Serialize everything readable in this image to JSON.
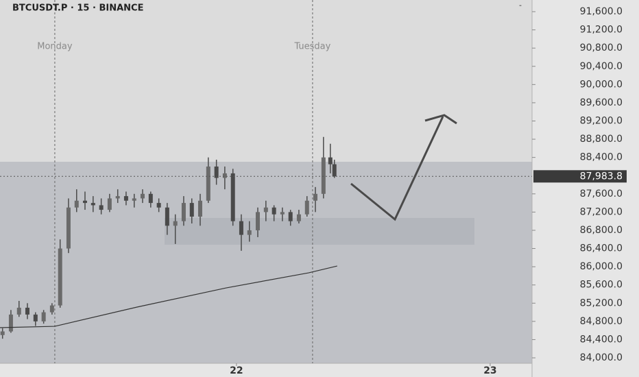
{
  "chart_data": {
    "type": "candlestick",
    "title": "BTCUSDT.P · 15 · BINANCE",
    "color": "#4a4a4a",
    "x": [
      21.078,
      21.111,
      21.143,
      21.176,
      21.208,
      21.24,
      21.273,
      21.305,
      21.338,
      21.37,
      21.403,
      21.435,
      21.467,
      21.5,
      21.532,
      21.565,
      21.597,
      21.63,
      21.662,
      21.694,
      21.727,
      21.759,
      21.792,
      21.824,
      21.857,
      21.889,
      21.921,
      21.954,
      21.986,
      22.019,
      22.051,
      22.084,
      22.116,
      22.148,
      22.181,
      22.213,
      22.246,
      22.278,
      22.311,
      22.343,
      22.37,
      22.386
    ],
    "open": [
      84500,
      84580,
      84950,
      85100,
      84950,
      84800,
      85000,
      85150,
      86400,
      87300,
      87450,
      87400,
      87350,
      87250,
      87500,
      87550,
      87450,
      87500,
      87600,
      87400,
      87300,
      86900,
      87000,
      87400,
      87100,
      87450,
      88200,
      87950,
      88050,
      87000,
      86700,
      86800,
      87200,
      87300,
      87150,
      87200,
      87000,
      87150,
      87450,
      87600,
      88400,
      88250
    ],
    "high": [
      84650,
      85050,
      85250,
      85200,
      85000,
      85050,
      85200,
      86600,
      87500,
      87700,
      87650,
      87550,
      87500,
      87600,
      87700,
      87650,
      87600,
      87700,
      87650,
      87500,
      87400,
      87150,
      87550,
      87500,
      87600,
      88400,
      88350,
      88200,
      88150,
      87150,
      87000,
      87300,
      87450,
      87350,
      87300,
      87250,
      87250,
      87550,
      87750,
      88850,
      88700,
      88350
    ],
    "low": [
      84420,
      84550,
      84900,
      84850,
      84700,
      84750,
      84950,
      85100,
      86300,
      87200,
      87250,
      87200,
      87150,
      87200,
      87400,
      87350,
      87300,
      87400,
      87300,
      87200,
      86700,
      86500,
      86900,
      86950,
      86900,
      87400,
      87800,
      87700,
      86900,
      86350,
      86550,
      86650,
      87000,
      87000,
      87000,
      86900,
      86950,
      87100,
      87200,
      87500,
      88050,
      87950
    ],
    "close": [
      84580,
      84950,
      85100,
      84950,
      84800,
      85000,
      85150,
      86400,
      87300,
      87450,
      87400,
      87350,
      87250,
      87500,
      87550,
      87450,
      87500,
      87600,
      87400,
      87300,
      86900,
      87000,
      87400,
      87100,
      87450,
      88200,
      87950,
      88050,
      87000,
      86700,
      86800,
      87200,
      87300,
      87150,
      87200,
      87000,
      87150,
      87450,
      87600,
      88400,
      88250,
      87983.8
    ],
    "moving_average": {
      "color": "#333333",
      "x": [
        21.068,
        21.284,
        21.608,
        21.959,
        22.284,
        22.397
      ],
      "values": [
        84662,
        84692,
        85114,
        85535,
        85866,
        86016
      ]
    },
    "last_price": {
      "value": 87983.8,
      "label": "87,983.8"
    },
    "sessions": [
      {
        "x": 21.284,
        "label": "Monday"
      },
      {
        "x": 22.3,
        "label": "Tuesday"
      }
    ],
    "xlim": [
      21.068,
      23.165
    ],
    "xticks": [
      {
        "value": 22,
        "label": "22"
      },
      {
        "value": 23,
        "label": "23"
      }
    ],
    "ylim": [
      83880,
      91856
    ],
    "yticks": [
      {
        "value": 84000,
        "label": "84,000.0"
      },
      {
        "value": 84400,
        "label": "84,400.0"
      },
      {
        "value": 84800,
        "label": "84,800.0"
      },
      {
        "value": 85200,
        "label": "85,200.0"
      },
      {
        "value": 85600,
        "label": "85,600.0"
      },
      {
        "value": 86000,
        "label": "86,000.0"
      },
      {
        "value": 86400,
        "label": "86,400.0"
      },
      {
        "value": 86800,
        "label": "86,800.0"
      },
      {
        "value": 87200,
        "label": "87,200.0"
      },
      {
        "value": 87600,
        "label": "87,600.0"
      },
      {
        "value": 88400,
        "label": "88,400.0"
      },
      {
        "value": 88800,
        "label": "88,800.0"
      },
      {
        "value": 89200,
        "label": "89,200.0"
      },
      {
        "value": 89600,
        "label": "89,600.0"
      },
      {
        "value": 90000,
        "label": "90,000.0"
      },
      {
        "value": 90400,
        "label": "90,400.0"
      },
      {
        "value": 90800,
        "label": "90,800.0"
      },
      {
        "value": 91200,
        "label": "91,200.0"
      },
      {
        "value": 91600,
        "label": "91,600.0"
      }
    ]
  }
}
